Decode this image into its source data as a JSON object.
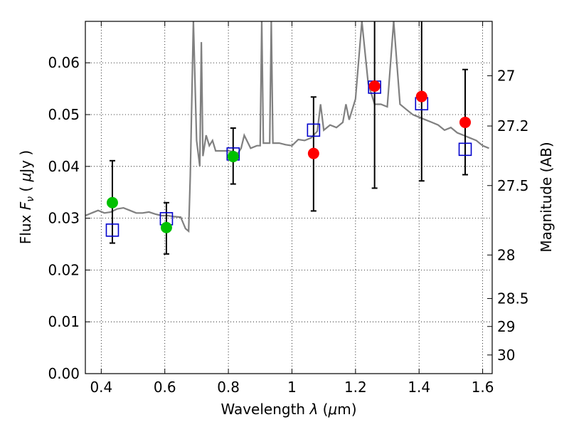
{
  "chart_data": {
    "type": "scatter",
    "xlabel": "Wavelength  λ (μm)",
    "ylabel": "Flux  F_ν  ( μJy )",
    "y2label": "Magnitude (AB)",
    "xlim": [
      0.35,
      1.63
    ],
    "ylim": [
      0.0,
      0.068
    ],
    "grid": true,
    "x_ticks": [
      0.4,
      0.6,
      0.8,
      1.0,
      1.2,
      1.4,
      1.6
    ],
    "x_tick_labels": [
      "0.4",
      "0.6",
      "0.8",
      "1",
      "1.2",
      "1.4",
      "1.6"
    ],
    "y_ticks": [
      0.0,
      0.01,
      0.02,
      0.03,
      0.04,
      0.05,
      0.06
    ],
    "y_tick_labels": [
      "0.00",
      "0.01",
      "0.02",
      "0.03",
      "0.04",
      "0.05",
      "0.06"
    ],
    "y2_ticks": [
      {
        "label": "27",
        "flux": 0.0575
      },
      {
        "label": "27.2",
        "flux": 0.0478
      },
      {
        "label": "27.5",
        "flux": 0.0363
      },
      {
        "label": "28",
        "flux": 0.0229
      },
      {
        "label": "28.5",
        "flux": 0.0145
      },
      {
        "label": "29",
        "flux": 0.0091
      },
      {
        "label": "30",
        "flux": 0.0036
      }
    ],
    "colors": {
      "spectrum": "#808080",
      "green_points": "#00c000",
      "red_points": "#ff0000",
      "model_squares": "#0000cc",
      "error_bars": "#000000"
    },
    "series": [
      {
        "kind": "spectrum",
        "x": [
          0.35,
          0.37,
          0.39,
          0.41,
          0.43,
          0.45,
          0.47,
          0.49,
          0.51,
          0.53,
          0.55,
          0.57,
          0.59,
          0.61,
          0.63,
          0.65,
          0.665,
          0.675,
          0.68,
          0.69,
          0.7,
          0.71,
          0.715,
          0.72,
          0.73,
          0.74,
          0.75,
          0.76,
          0.78,
          0.8,
          0.82,
          0.83,
          0.84,
          0.85,
          0.87,
          0.89,
          0.9,
          0.905,
          0.91,
          0.93,
          0.935,
          0.94,
          0.96,
          0.98,
          1.0,
          1.02,
          1.04,
          1.06,
          1.08,
          1.09,
          1.1,
          1.12,
          1.14,
          1.16,
          1.17,
          1.18,
          1.2,
          1.22,
          1.24,
          1.26,
          1.28,
          1.3,
          1.32,
          1.34,
          1.36,
          1.38,
          1.4,
          1.42,
          1.44,
          1.46,
          1.48,
          1.5,
          1.52,
          1.54,
          1.56,
          1.58,
          1.6,
          1.62
        ],
        "y": [
          0.0305,
          0.031,
          0.0315,
          0.031,
          0.0312,
          0.0318,
          0.032,
          0.0315,
          0.031,
          0.031,
          0.0312,
          0.0308,
          0.0305,
          0.0305,
          0.0303,
          0.0302,
          0.028,
          0.0275,
          0.038,
          0.068,
          0.045,
          0.04,
          0.064,
          0.042,
          0.046,
          0.044,
          0.045,
          0.043,
          0.043,
          0.043,
          0.0428,
          0.0425,
          0.0435,
          0.046,
          0.0435,
          0.044,
          0.044,
          0.068,
          0.0445,
          0.0445,
          0.068,
          0.0445,
          0.0445,
          0.0442,
          0.044,
          0.0452,
          0.045,
          0.0455,
          0.0468,
          0.052,
          0.047,
          0.048,
          0.0475,
          0.0485,
          0.052,
          0.049,
          0.053,
          0.068,
          0.056,
          0.052,
          0.052,
          0.0515,
          0.068,
          0.052,
          0.051,
          0.05,
          0.0495,
          0.049,
          0.0485,
          0.048,
          0.047,
          0.0475,
          0.0465,
          0.046,
          0.0455,
          0.045,
          0.044,
          0.0435
        ]
      },
      {
        "kind": "observed",
        "color": "green",
        "x": [
          0.435,
          0.605,
          0.815
        ],
        "y": [
          0.033,
          0.0282,
          0.0419
        ],
        "yerr": [
          [
            0.0252,
            0.0411
          ],
          [
            0.0231,
            0.033
          ],
          [
            0.0366,
            0.0474
          ]
        ]
      },
      {
        "kind": "observed",
        "color": "red",
        "x": [
          1.068,
          1.26,
          1.408,
          1.545
        ],
        "y": [
          0.0425,
          0.0555,
          0.0535,
          0.0485
        ],
        "yerr": [
          [
            0.0314,
            0.0534
          ],
          [
            0.0358,
            0.068
          ],
          [
            0.0372,
            0.068
          ],
          [
            0.0384,
            0.0587
          ]
        ]
      },
      {
        "kind": "model",
        "marker": "open-square",
        "x": [
          0.435,
          0.605,
          0.815,
          1.068,
          1.26,
          1.408,
          1.545
        ],
        "y": [
          0.0277,
          0.0299,
          0.0424,
          0.047,
          0.0553,
          0.0521,
          0.0433
        ]
      }
    ]
  }
}
